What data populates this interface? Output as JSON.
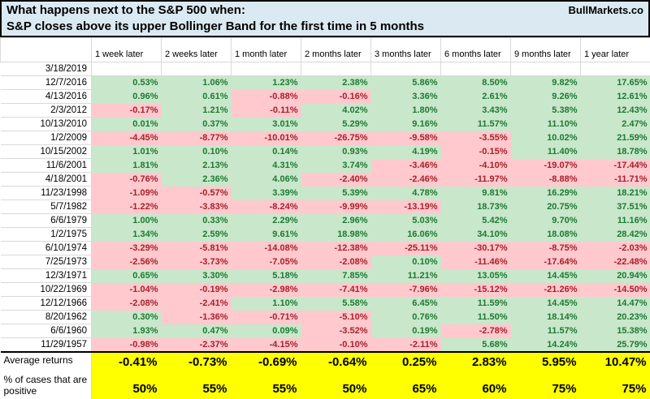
{
  "chart_data": {
    "type": "table",
    "title": "What happens next to the S&P 500 when:",
    "subtitle": "S&P closes above its upper Bollinger Band for the first time in 5 months",
    "brand": "BullMarkets.co",
    "columns": [
      "1 week later",
      "2 weeks later",
      "1 month later",
      "2 months later",
      "3 months later",
      "6 months later",
      "9 months later",
      "1 year later"
    ],
    "rows": [
      {
        "date": "3/18/2019",
        "values": [
          "",
          "",
          "",
          "",
          "",
          "",
          "",
          ""
        ]
      },
      {
        "date": "12/7/2016",
        "values": [
          "0.53%",
          "1.06%",
          "1.23%",
          "2.38%",
          "5.86%",
          "8.50%",
          "9.82%",
          "17.65%"
        ]
      },
      {
        "date": "4/13/2016",
        "values": [
          "0.96%",
          "0.61%",
          "-0.88%",
          "-0.16%",
          "3.36%",
          "2.61%",
          "9.26%",
          "12.61%"
        ]
      },
      {
        "date": "2/3/2012",
        "values": [
          "-0.17%",
          "1.21%",
          "-0.11%",
          "4.02%",
          "1.80%",
          "3.43%",
          "5.38%",
          "12.43%"
        ]
      },
      {
        "date": "10/13/2010",
        "values": [
          "0.01%",
          "0.37%",
          "3.01%",
          "5.29%",
          "9.16%",
          "11.57%",
          "11.10%",
          "2.47%"
        ]
      },
      {
        "date": "1/2/2009",
        "values": [
          "-4.45%",
          "-8.77%",
          "-10.01%",
          "-26.75%",
          "-9.58%",
          "-3.55%",
          "10.02%",
          "21.59%"
        ]
      },
      {
        "date": "10/15/2002",
        "values": [
          "1.01%",
          "0.10%",
          "0.14%",
          "0.93%",
          "4.19%",
          "-0.15%",
          "11.40%",
          "18.78%"
        ]
      },
      {
        "date": "11/6/2001",
        "values": [
          "1.81%",
          "2.13%",
          "4.31%",
          "3.74%",
          "-3.46%",
          "-4.10%",
          "-19.07%",
          "-17.44%"
        ]
      },
      {
        "date": "4/18/2001",
        "values": [
          "-0.76%",
          "2.36%",
          "4.06%",
          "-2.40%",
          "-2.46%",
          "-11.97%",
          "-8.88%",
          "-11.71%"
        ]
      },
      {
        "date": "11/23/1998",
        "values": [
          "-1.09%",
          "-0.57%",
          "3.39%",
          "5.39%",
          "4.78%",
          "9.81%",
          "16.29%",
          "18.21%"
        ]
      },
      {
        "date": "5/7/1982",
        "values": [
          "-1.22%",
          "-3.83%",
          "-8.24%",
          "-9.99%",
          "-13.19%",
          "18.73%",
          "20.75%",
          "37.51%"
        ]
      },
      {
        "date": "6/6/1979",
        "values": [
          "1.00%",
          "0.33%",
          "2.29%",
          "2.96%",
          "5.03%",
          "5.42%",
          "9.70%",
          "11.16%"
        ]
      },
      {
        "date": "1/2/1975",
        "values": [
          "1.34%",
          "2.59%",
          "9.61%",
          "18.98%",
          "16.06%",
          "34.10%",
          "18.08%",
          "28.42%"
        ]
      },
      {
        "date": "6/10/1974",
        "values": [
          "-3.29%",
          "-5.81%",
          "-14.08%",
          "-12.38%",
          "-25.11%",
          "-30.17%",
          "-8.75%",
          "-2.03%"
        ]
      },
      {
        "date": "7/25/1973",
        "values": [
          "-2.56%",
          "-3.73%",
          "-7.05%",
          "-2.08%",
          "0.10%",
          "-11.46%",
          "-17.64%",
          "-22.48%"
        ]
      },
      {
        "date": "12/3/1971",
        "values": [
          "0.65%",
          "3.30%",
          "5.18%",
          "7.85%",
          "11.21%",
          "13.05%",
          "14.45%",
          "20.94%"
        ]
      },
      {
        "date": "10/22/1969",
        "values": [
          "-1.04%",
          "-0.19%",
          "-2.98%",
          "-7.41%",
          "-7.96%",
          "-15.12%",
          "-21.26%",
          "-14.50%"
        ]
      },
      {
        "date": "12/12/1966",
        "values": [
          "-2.08%",
          "-2.41%",
          "1.10%",
          "5.58%",
          "6.45%",
          "11.59%",
          "14.45%",
          "14.47%"
        ]
      },
      {
        "date": "8/20/1962",
        "values": [
          "0.30%",
          "-1.36%",
          "-0.71%",
          "-5.10%",
          "0.76%",
          "11.50%",
          "18.14%",
          "20.23%"
        ]
      },
      {
        "date": "6/6/1960",
        "values": [
          "1.93%",
          "0.47%",
          "0.09%",
          "-3.52%",
          "0.19%",
          "-2.78%",
          "11.57%",
          "15.38%"
        ]
      },
      {
        "date": "11/29/1957",
        "values": [
          "-0.98%",
          "-2.37%",
          "-4.15%",
          "-0.10%",
          "-2.11%",
          "5.68%",
          "14.24%",
          "25.79%"
        ]
      }
    ],
    "summary": {
      "avg_label": "Average returns",
      "avg_values": [
        "-0.41%",
        "-0.73%",
        "-0.69%",
        "-0.64%",
        "0.25%",
        "2.83%",
        "5.95%",
        "10.47%"
      ],
      "pct_label": "% of cases that are positive",
      "pct_values": [
        "50%",
        "55%",
        "55%",
        "50%",
        "65%",
        "60%",
        "75%",
        "75%"
      ]
    }
  },
  "colors": {
    "positive_bg": "#c9e7cb",
    "positive_text": "#1d7a33",
    "negative_bg": "#ffc9ce",
    "negative_text": "#a6202a",
    "summary_bg": "#ffff00",
    "title_bg": "#dbe9f2",
    "gridline": "#d9d9d9"
  }
}
